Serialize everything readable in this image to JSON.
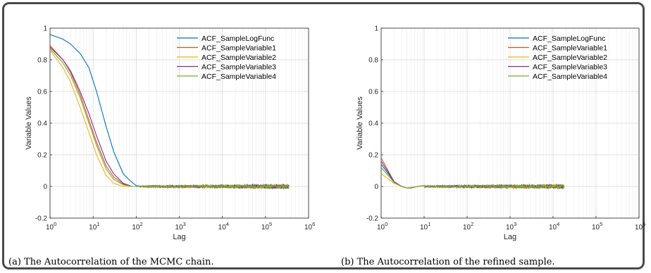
{
  "captions": {
    "a": "(a) The Autocorrelation of the MCMC chain.",
    "b": "(b) The Autocorrelation of the refined sample."
  },
  "chart_data": [
    {
      "type": "line",
      "xscale": "log",
      "xlabel": "Lag",
      "ylabel": "Variable Values",
      "xlim": [
        1,
        1000000
      ],
      "ylim": [
        -0.2,
        1
      ],
      "xticks": [
        1,
        10,
        100,
        1000,
        10000,
        100000,
        1000000
      ],
      "xtick_labels": [
        [
          "10",
          "0"
        ],
        [
          "10",
          "1"
        ],
        [
          "10",
          "2"
        ],
        [
          "10",
          "3"
        ],
        [
          "10",
          "4"
        ],
        [
          "10",
          "5"
        ],
        [
          "10",
          "6"
        ]
      ],
      "yticks": [
        -0.2,
        0,
        0.2,
        0.4,
        0.6,
        0.8,
        1
      ],
      "ytick_labels": [
        "-0.2",
        "0",
        "0.2",
        "0.4",
        "0.6",
        "0.8",
        "1"
      ],
      "grid": true,
      "legend_position": "top-right",
      "noise_until_lag": 350000,
      "series": [
        {
          "name": "ACF_SampleLogFunc",
          "color": "#0072BD",
          "x": [
            1,
            2,
            3,
            5,
            8,
            12,
            20,
            30,
            50,
            70,
            100,
            150
          ],
          "y": [
            0.96,
            0.93,
            0.9,
            0.84,
            0.75,
            0.6,
            0.38,
            0.22,
            0.08,
            0.04,
            0.005,
            0.0
          ]
        },
        {
          "name": "ACF_SampleVariable1",
          "color": "#D95319",
          "x": [
            1,
            2,
            3,
            5,
            8,
            12,
            20,
            30,
            50,
            80,
            120
          ],
          "y": [
            0.89,
            0.8,
            0.72,
            0.58,
            0.42,
            0.28,
            0.13,
            0.06,
            0.015,
            0.0,
            0.0
          ]
        },
        {
          "name": "ACF_SampleVariable2",
          "color": "#EDB120",
          "x": [
            1,
            2,
            3,
            5,
            8,
            12,
            20,
            30,
            50,
            80,
            120
          ],
          "y": [
            0.86,
            0.75,
            0.66,
            0.5,
            0.34,
            0.2,
            0.07,
            0.02,
            0.0,
            0.0,
            0.0
          ]
        },
        {
          "name": "ACF_SampleVariable3",
          "color": "#7E2F8E",
          "x": [
            1,
            2,
            3,
            5,
            8,
            12,
            20,
            30,
            50,
            80,
            120
          ],
          "y": [
            0.88,
            0.8,
            0.73,
            0.6,
            0.46,
            0.32,
            0.16,
            0.08,
            0.02,
            0.0,
            0.0
          ]
        },
        {
          "name": "ACF_SampleVariable4",
          "color": "#77AC30",
          "x": [
            1,
            2,
            3,
            5,
            8,
            12,
            20,
            30,
            50,
            80,
            120
          ],
          "y": [
            0.87,
            0.78,
            0.7,
            0.56,
            0.4,
            0.26,
            0.11,
            0.045,
            0.01,
            0.0,
            0.0
          ]
        }
      ]
    },
    {
      "type": "line",
      "xscale": "log",
      "xlabel": "Lag",
      "ylabel": "Variable Values",
      "xlim": [
        1,
        1000000
      ],
      "ylim": [
        -0.2,
        1
      ],
      "xticks": [
        1,
        10,
        100,
        1000,
        10000,
        100000,
        1000000
      ],
      "xtick_labels": [
        [
          "10",
          "0"
        ],
        [
          "10",
          "1"
        ],
        [
          "10",
          "2"
        ],
        [
          "10",
          "3"
        ],
        [
          "10",
          "4"
        ],
        [
          "10",
          "5"
        ],
        [
          "10",
          "6"
        ]
      ],
      "yticks": [
        -0.2,
        0,
        0.2,
        0.4,
        0.6,
        0.8,
        1
      ],
      "ytick_labels": [
        "-0.2",
        "0",
        "0.2",
        "0.4",
        "0.6",
        "0.8",
        "1"
      ],
      "grid": true,
      "legend_position": "top-right",
      "noise_until_lag": 18000,
      "series": [
        {
          "name": "ACF_SampleLogFunc",
          "color": "#0072BD",
          "x": [
            1,
            2,
            3,
            4,
            5,
            7,
            10
          ],
          "y": [
            0.14,
            0.03,
            0.0,
            -0.01,
            -0.01,
            0.0,
            0.005
          ]
        },
        {
          "name": "ACF_SampleVariable1",
          "color": "#D95319",
          "x": [
            1,
            2,
            3,
            4,
            5,
            7,
            10
          ],
          "y": [
            0.18,
            0.03,
            0.0,
            -0.01,
            -0.01,
            0.0,
            0.005
          ]
        },
        {
          "name": "ACF_SampleVariable2",
          "color": "#EDB120",
          "x": [
            1,
            2,
            3,
            4,
            5,
            7,
            10
          ],
          "y": [
            0.08,
            0.02,
            0.0,
            -0.01,
            -0.005,
            0.0,
            0.005
          ]
        },
        {
          "name": "ACF_SampleVariable3",
          "color": "#7E2F8E",
          "x": [
            1,
            2,
            3,
            4,
            5,
            7,
            10
          ],
          "y": [
            0.16,
            0.03,
            0.0,
            -0.01,
            -0.01,
            0.0,
            0.005
          ]
        },
        {
          "name": "ACF_SampleVariable4",
          "color": "#77AC30",
          "x": [
            1,
            2,
            3,
            4,
            5,
            7,
            10
          ],
          "y": [
            0.12,
            0.025,
            0.0,
            -0.01,
            -0.01,
            0.0,
            0.005
          ]
        }
      ]
    }
  ]
}
